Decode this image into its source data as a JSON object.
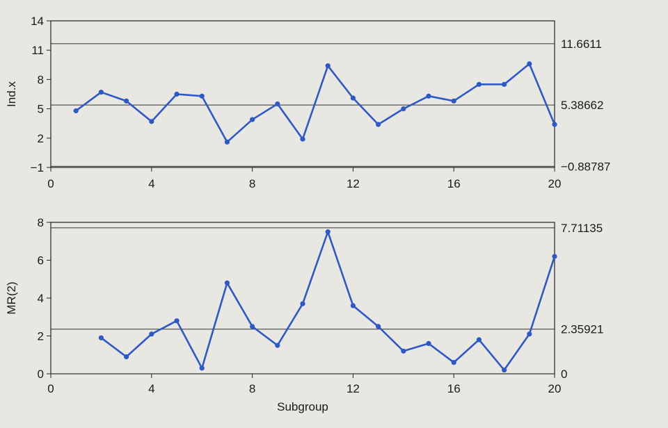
{
  "chart_data": [
    {
      "type": "line",
      "ylabel": "Ind.x",
      "xlim": [
        0,
        20
      ],
      "ylim": [
        -1,
        14
      ],
      "xticks": [
        0,
        4,
        8,
        12,
        16,
        20
      ],
      "yticks": [
        -1,
        2,
        5,
        8,
        11,
        14
      ],
      "x": [
        1,
        2,
        3,
        4,
        5,
        6,
        7,
        8,
        9,
        10,
        11,
        12,
        13,
        14,
        15,
        16,
        17,
        18,
        19,
        20
      ],
      "values": [
        4.8,
        6.7,
        5.8,
        3.7,
        6.5,
        6.3,
        1.6,
        3.9,
        5.5,
        1.9,
        9.4,
        6.1,
        3.4,
        5.0,
        6.3,
        5.8,
        7.5,
        7.5,
        9.6,
        3.4
      ],
      "control_limits": [
        {
          "label": "11.6611",
          "value": 11.6611
        },
        {
          "label": "5.38662",
          "value": 5.38662
        },
        {
          "label": "−0.88787",
          "value": -0.88787
        }
      ],
      "line_color": "#2d58c8"
    },
    {
      "type": "line",
      "ylabel": "MR(2)",
      "xlabel": "Subgroup",
      "xlim": [
        0,
        20
      ],
      "ylim": [
        0,
        8
      ],
      "xticks": [
        0,
        4,
        8,
        12,
        16,
        20
      ],
      "yticks": [
        0,
        2,
        4,
        6,
        8
      ],
      "x": [
        2,
        3,
        4,
        5,
        6,
        7,
        8,
        9,
        10,
        11,
        12,
        13,
        14,
        15,
        16,
        17,
        18,
        19,
        20
      ],
      "values": [
        1.9,
        0.9,
        2.1,
        2.8,
        0.3,
        4.8,
        2.5,
        1.5,
        3.7,
        7.5,
        3.6,
        2.5,
        1.2,
        1.6,
        0.6,
        1.8,
        0.2,
        2.1,
        6.2
      ],
      "control_limits": [
        {
          "label": "7.71135",
          "value": 7.71135
        },
        {
          "label": "2.35921",
          "value": 2.35921
        },
        {
          "label": "0",
          "value": 0
        }
      ],
      "line_color": "#2d58c8"
    }
  ]
}
